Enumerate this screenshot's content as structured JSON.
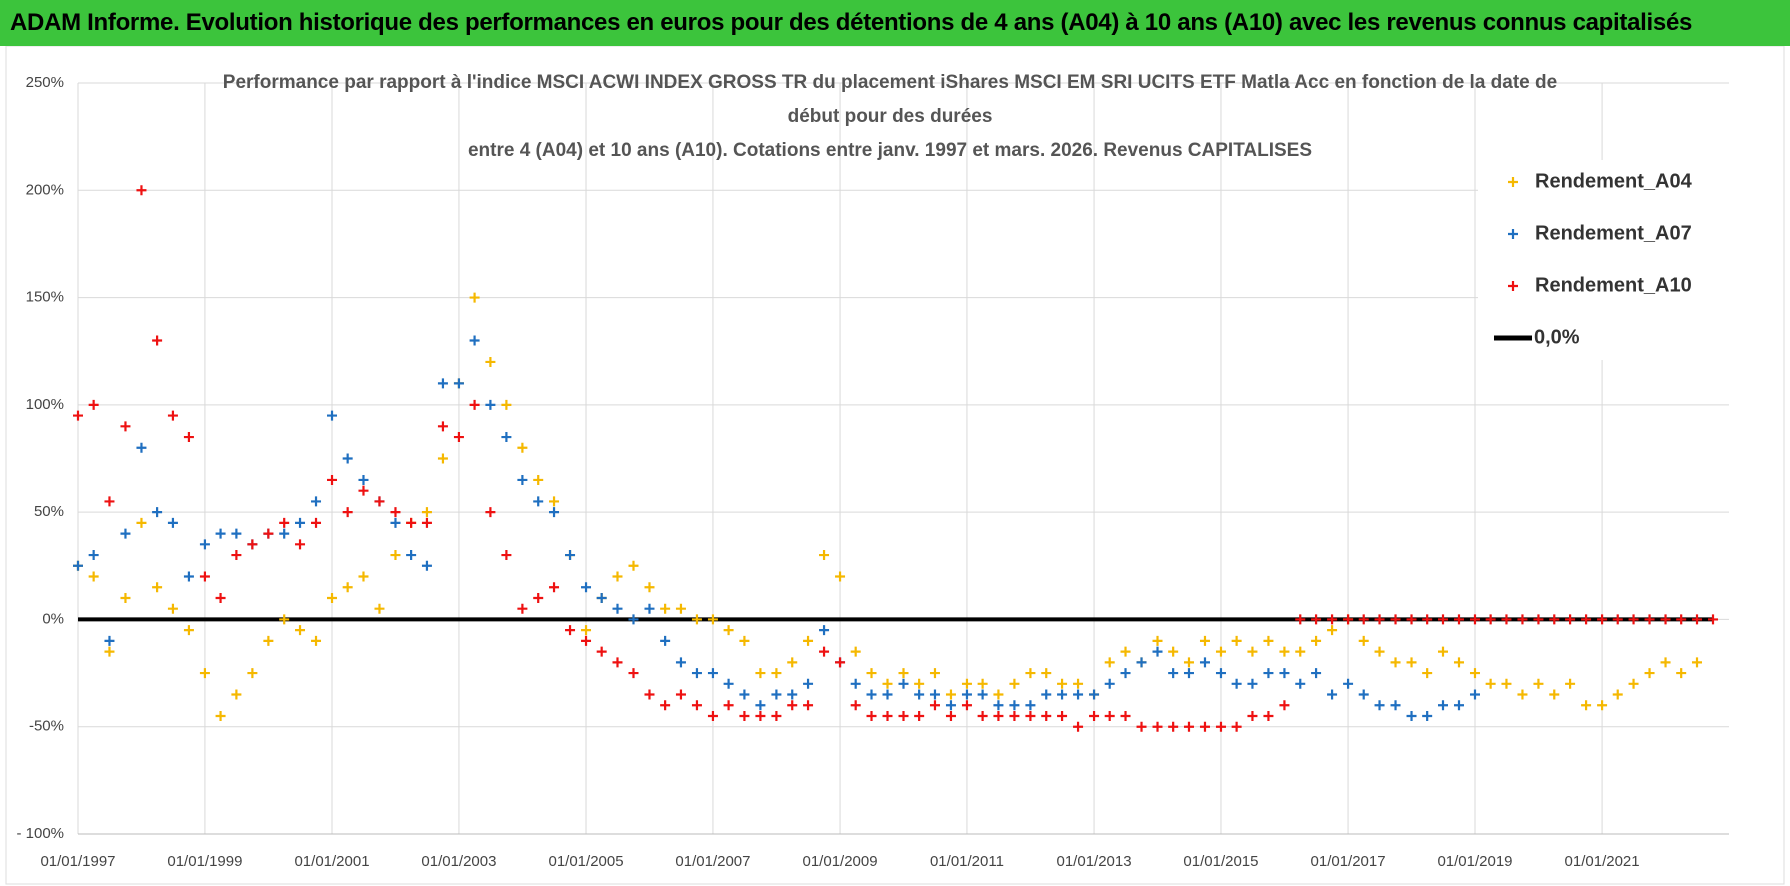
{
  "header": "ADAM Informe. Evolution historique des performances en euros pour des détentions de 4 ans (A04) à 10 ans (A10) avec les revenus connus capitalisés",
  "chart_data": {
    "type": "scatter",
    "title": [
      "Performance par rapport à l'indice MSCI ACWI INDEX GROSS TR  du placement iShares MSCI EM SRI UCITS ETF Matla Acc en fonction de la date de",
      "début pour des durées",
      "entre 4 (A04) et 10 ans (A10). Cotations entre janv. 1997 et mars. 2026. Revenus CAPITALISES"
    ],
    "x": [
      "1997-01-01",
      "1997-04-01",
      "1997-07-01",
      "1997-10-01",
      "1998-01-01",
      "1998-04-01",
      "1998-07-01",
      "1998-10-01",
      "1999-01-01",
      "1999-04-01",
      "1999-07-01",
      "1999-10-01",
      "2000-01-01",
      "2000-04-01",
      "2000-07-01",
      "2000-10-01",
      "2001-01-01",
      "2001-04-01",
      "2001-07-01",
      "2001-10-01",
      "2002-01-01",
      "2002-04-01",
      "2002-07-01",
      "2002-10-01",
      "2003-01-01",
      "2003-04-01",
      "2003-07-01",
      "2003-10-01",
      "2004-01-01",
      "2004-04-01",
      "2004-07-01",
      "2004-10-01",
      "2005-01-01",
      "2005-04-01",
      "2005-07-01",
      "2005-10-01",
      "2006-01-01",
      "2006-04-01",
      "2006-07-01",
      "2006-10-01",
      "2007-01-01",
      "2007-04-01",
      "2007-07-01",
      "2007-10-01",
      "2008-01-01",
      "2008-04-01",
      "2008-07-01",
      "2008-10-01",
      "2009-01-01",
      "2009-04-01",
      "2009-07-01",
      "2009-10-01",
      "2010-01-01",
      "2010-04-01",
      "2010-07-01",
      "2010-10-01",
      "2011-01-01",
      "2011-04-01",
      "2011-07-01",
      "2011-10-01",
      "2012-01-01",
      "2012-04-01",
      "2012-07-01",
      "2012-10-01",
      "2013-01-01",
      "2013-04-01",
      "2013-07-01",
      "2013-10-01",
      "2014-01-01",
      "2014-04-01",
      "2014-07-01",
      "2014-10-01",
      "2015-01-01",
      "2015-04-01",
      "2015-07-01",
      "2015-10-01",
      "2016-01-01",
      "2016-04-01",
      "2016-07-01",
      "2016-10-01",
      "2017-01-01",
      "2017-04-01",
      "2017-07-01",
      "2017-10-01",
      "2018-01-01",
      "2018-04-01",
      "2018-07-01",
      "2018-10-01",
      "2019-01-01",
      "2019-04-01",
      "2019-07-01",
      "2019-10-01",
      "2020-01-01",
      "2020-04-01",
      "2020-07-01",
      "2020-10-01",
      "2021-01-01",
      "2021-04-01",
      "2021-07-01",
      "2021-10-01",
      "2022-01-01",
      "2022-04-01",
      "2022-07-01",
      "2022-10-01"
    ],
    "series": [
      {
        "name": "Rendement_A04",
        "color": "#f5b800",
        "mark": "plus",
        "values": [
          25,
          20,
          -15,
          10,
          45,
          15,
          5,
          -5,
          -25,
          -45,
          -35,
          -25,
          -10,
          0,
          -5,
          -10,
          10,
          15,
          20,
          5,
          30,
          45,
          50,
          75,
          110,
          150,
          120,
          100,
          80,
          65,
          55,
          30,
          -5,
          10,
          20,
          25,
          15,
          5,
          5,
          0,
          0,
          -5,
          -10,
          -25,
          -25,
          -20,
          -10,
          30,
          20,
          -15,
          -25,
          -30,
          -25,
          -30,
          -25,
          -35,
          -30,
          -30,
          -35,
          -30,
          -25,
          -25,
          -30,
          -30,
          -35,
          -20,
          -15,
          -20,
          -10,
          -15,
          -20,
          -10,
          -15,
          -10,
          -15,
          -10,
          -15,
          -15,
          -10,
          -5,
          0,
          -10,
          -15,
          -20,
          -20,
          -25,
          -15,
          -20,
          -25,
          -30,
          -30,
          -35,
          -30,
          -35,
          -30,
          -40,
          -40,
          -35,
          -30,
          -25,
          -20,
          -25,
          -20,
          null
        ]
      },
      {
        "name": "Rendement_A07",
        "color": "#1f6fc0",
        "mark": "plus",
        "values": [
          25,
          30,
          -10,
          40,
          80,
          50,
          45,
          20,
          35,
          40,
          40,
          35,
          40,
          40,
          45,
          55,
          95,
          75,
          65,
          55,
          45,
          30,
          25,
          110,
          110,
          130,
          100,
          85,
          65,
          55,
          50,
          30,
          15,
          10,
          5,
          0,
          5,
          -10,
          -20,
          -25,
          -25,
          -30,
          -35,
          -40,
          -35,
          -35,
          -30,
          -5,
          -20,
          -30,
          -35,
          -35,
          -30,
          -35,
          -35,
          -40,
          -35,
          -35,
          -40,
          -40,
          -40,
          -35,
          -35,
          -35,
          -35,
          -30,
          -25,
          -20,
          -15,
          -25,
          -25,
          -20,
          -25,
          -30,
          -30,
          -25,
          -25,
          -30,
          -25,
          -35,
          -30,
          -35,
          -40,
          -40,
          -45,
          -45,
          -40,
          -40,
          -35,
          null,
          null,
          null,
          null,
          null,
          null,
          null,
          null,
          null,
          null,
          null,
          null,
          null,
          null,
          null
        ]
      },
      {
        "name": "Rendement_A10",
        "color": "#ee1111",
        "mark": "plus",
        "values": [
          95,
          100,
          55,
          90,
          200,
          130,
          95,
          85,
          20,
          10,
          30,
          35,
          40,
          45,
          35,
          45,
          65,
          50,
          60,
          55,
          50,
          45,
          45,
          90,
          85,
          100,
          50,
          30,
          5,
          10,
          15,
          -5,
          -10,
          -15,
          -20,
          -25,
          -35,
          -40,
          -35,
          -40,
          -45,
          -40,
          -45,
          -45,
          -45,
          -40,
          -40,
          -15,
          -20,
          -40,
          -45,
          -45,
          -45,
          -45,
          -40,
          -45,
          -40,
          -45,
          -45,
          -45,
          -45,
          -45,
          -45,
          -50,
          -45,
          -45,
          -45,
          -50,
          -50,
          -50,
          -50,
          -50,
          -50,
          -50,
          -45,
          -45,
          -40,
          0,
          0,
          0,
          0,
          0,
          0,
          0,
          0,
          0,
          0,
          0,
          0,
          0,
          0,
          0,
          0,
          0,
          0,
          0,
          0,
          0,
          0,
          0,
          0,
          0,
          0,
          0
        ]
      },
      {
        "name": "0,0%",
        "color": "#000000",
        "mark": "line",
        "values": [
          0,
          0,
          0,
          0,
          0,
          0,
          0,
          0,
          0,
          0,
          0,
          0,
          0,
          0,
          0,
          0,
          0,
          0,
          0,
          0,
          0,
          0,
          0,
          0,
          0,
          0,
          0,
          0,
          0,
          0,
          0,
          0,
          0,
          0,
          0,
          0,
          0,
          0,
          0,
          0,
          0,
          0,
          0,
          0,
          0,
          0,
          0,
          0,
          0,
          0,
          0,
          0,
          0,
          0,
          0,
          0,
          0,
          0,
          0,
          0,
          0,
          0,
          0,
          0,
          0,
          0,
          0,
          0,
          0,
          0,
          0,
          0,
          0,
          0,
          0,
          0,
          0,
          0,
          0,
          0,
          0,
          0,
          0,
          0,
          0,
          0,
          0,
          0,
          0,
          0,
          0,
          0,
          0,
          0,
          0,
          0,
          0,
          0,
          0,
          0,
          0,
          0,
          0,
          0
        ]
      }
    ],
    "xlim": [
      "1997-01-01",
      "2023-01-01"
    ],
    "xticks": [
      {
        "value": "1997-01-01",
        "label": "01/01/1997"
      },
      {
        "value": "1999-01-01",
        "label": "01/01/1999"
      },
      {
        "value": "2001-01-01",
        "label": "01/01/2001"
      },
      {
        "value": "2003-01-01",
        "label": "01/01/2003"
      },
      {
        "value": "2005-01-01",
        "label": "01/01/2005"
      },
      {
        "value": "2007-01-01",
        "label": "01/01/2007"
      },
      {
        "value": "2009-01-01",
        "label": "01/01/2009"
      },
      {
        "value": "2011-01-01",
        "label": "01/01/2011"
      },
      {
        "value": "2013-01-01",
        "label": "01/01/2013"
      },
      {
        "value": "2015-01-01",
        "label": "01/01/2015"
      },
      {
        "value": "2017-01-01",
        "label": "01/01/2017"
      },
      {
        "value": "2019-01-01",
        "label": "01/01/2019"
      },
      {
        "value": "2021-01-01",
        "label": "01/01/2021"
      }
    ],
    "ylim": [
      -100,
      250
    ],
    "yticks": [
      {
        "value": -100,
        "label": "- 100%"
      },
      {
        "value": -50,
        "label": "-50%"
      },
      {
        "value": 0,
        "label": "0%"
      },
      {
        "value": 50,
        "label": "50%"
      },
      {
        "value": 100,
        "label": "100%"
      },
      {
        "value": 150,
        "label": "150%"
      },
      {
        "value": 200,
        "label": "200%"
      },
      {
        "value": 250,
        "label": "250%"
      }
    ],
    "grid": true,
    "legend": "upper right"
  }
}
